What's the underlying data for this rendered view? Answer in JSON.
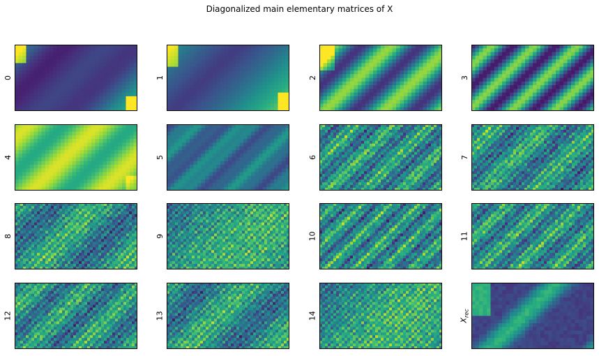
{
  "figure": {
    "title": "Diagonalized main elementary matrices of X"
  },
  "colormap": "viridis",
  "colors": {
    "dark": "#440154",
    "mid": "#21918c",
    "bright": "#fde725",
    "background": "#ffffff",
    "frame": "#000000"
  },
  "chart_data": {
    "type": "heatmap",
    "title": "Diagonalized main elementary matrices of X",
    "grid": false,
    "rows": 4,
    "cols": 4,
    "panels": [
      {
        "label": "0",
        "pattern": "smooth-low"
      },
      {
        "label": "1",
        "pattern": "smooth-low"
      },
      {
        "label": "2",
        "pattern": "smooth-stripes"
      },
      {
        "label": "3",
        "pattern": "smooth-stripes"
      },
      {
        "label": "4",
        "pattern": "smooth-high"
      },
      {
        "label": "5",
        "pattern": "smooth-mid"
      },
      {
        "label": "6",
        "pattern": "noisy-high-freq"
      },
      {
        "label": "7",
        "pattern": "noisy-high-freq"
      },
      {
        "label": "8",
        "pattern": "noisy-high-freq"
      },
      {
        "label": "9",
        "pattern": "noisy-high-freq"
      },
      {
        "label": "10",
        "pattern": "noisy-high-freq"
      },
      {
        "label": "11",
        "pattern": "noisy-high-freq"
      },
      {
        "label": "12",
        "pattern": "noisy-high-freq"
      },
      {
        "label": "13",
        "pattern": "noisy-high-freq"
      },
      {
        "label": "14",
        "pattern": "noisy-high-freq"
      },
      {
        "label": "X_rec",
        "pattern": "reconstruction"
      }
    ]
  }
}
